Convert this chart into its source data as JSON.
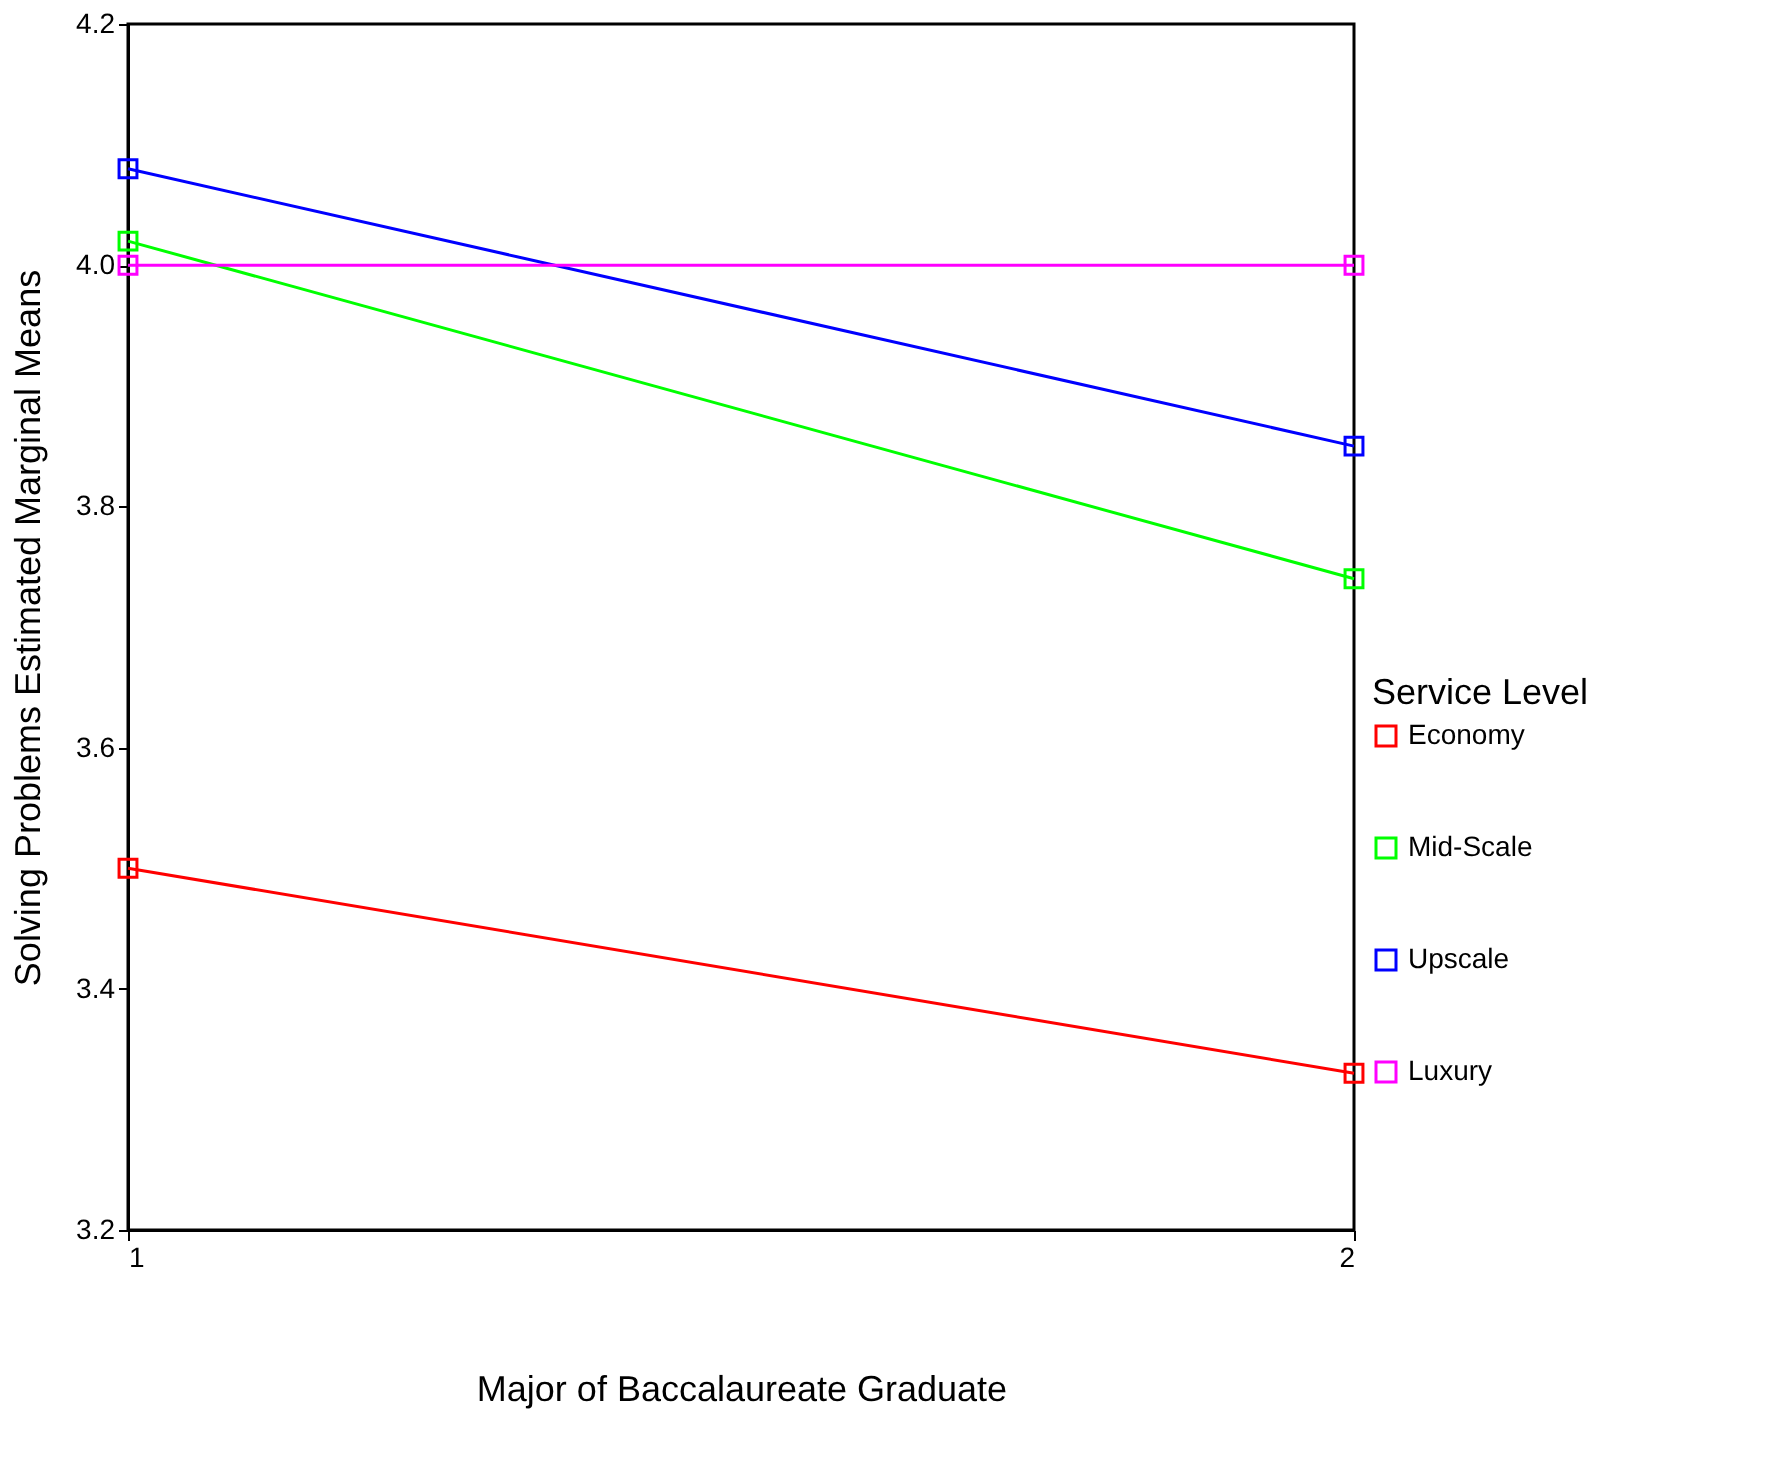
{
  "chart_data": {
    "type": "line",
    "xlabel": "Major of Baccalaureate Graduate",
    "ylabel": "Solving Problems Estimated Marginal Means",
    "legend_title": "Service Level",
    "x": [
      1,
      2
    ],
    "xlim": [
      1,
      2
    ],
    "xticks": [
      1,
      2
    ],
    "ylim": [
      3.2,
      4.2
    ],
    "yticks": [
      3.2,
      3.4,
      3.6,
      3.8,
      {
        "value": 4.0,
        "label": "4.0"
      },
      4.2
    ],
    "series": [
      {
        "name": "Economy",
        "color": "#ff0000",
        "values": [
          3.5,
          3.33
        ]
      },
      {
        "name": "Mid-Scale",
        "color": "#00ff00",
        "values": [
          4.02,
          3.74
        ]
      },
      {
        "name": "Upscale",
        "color": "#0000ff",
        "values": [
          4.08,
          3.85
        ]
      },
      {
        "name": "Luxury",
        "color": "#ff00ff",
        "values": [
          4.0,
          4.0
        ]
      }
    ],
    "marker": "square",
    "line_style": "solid",
    "grid": false,
    "legend": "right"
  }
}
